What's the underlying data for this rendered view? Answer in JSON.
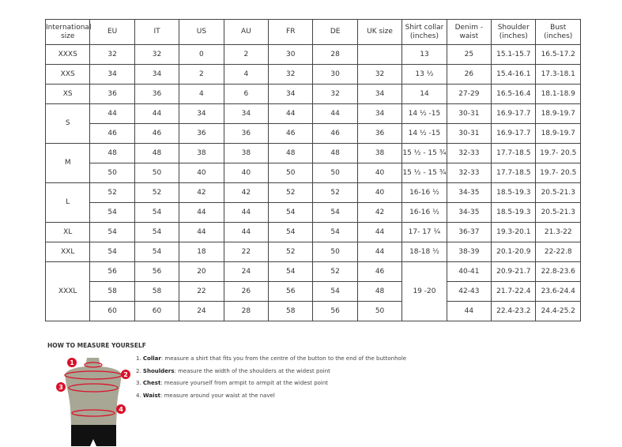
{
  "table": {
    "headers": [
      "International size",
      "EU",
      "IT",
      "US",
      "AU",
      "FR",
      "DE",
      "UK size",
      "Shirt collar (inches)",
      "Denim - waist",
      "Shoulder (inches)",
      "Bust (inches)"
    ],
    "groups": [
      {
        "size": "XXXS",
        "rows": [
          [
            "32",
            "32",
            "0",
            "2",
            "30",
            "28",
            "",
            "13",
            "25",
            "15.1-15.7",
            "16.5-17.2"
          ]
        ]
      },
      {
        "size": "XXS",
        "rows": [
          [
            "34",
            "34",
            "2",
            "4",
            "32",
            "30",
            "32",
            "13 ½",
            "26",
            "15.4-16.1",
            "17.3-18.1"
          ]
        ]
      },
      {
        "size": "XS",
        "rows": [
          [
            "36",
            "36",
            "4",
            "6",
            "34",
            "32",
            "34",
            "14",
            "27-29",
            "16.5-16.4",
            "18.1-18.9"
          ]
        ]
      },
      {
        "size": "S",
        "rows": [
          [
            "44",
            "44",
            "34",
            "34",
            "44",
            "44",
            "34",
            "14 ½ -15",
            "30-31",
            "16.9-17.7",
            "18.9-19.7"
          ],
          [
            "46",
            "46",
            "36",
            "36",
            "46",
            "46",
            "36",
            "14 ½ -15",
            "30-31",
            "16.9-17.7",
            "18.9-19.7"
          ]
        ]
      },
      {
        "size": "M",
        "rows": [
          [
            "48",
            "48",
            "38",
            "38",
            "48",
            "48",
            "38",
            "15 ½ - 15 ¾",
            "32-33",
            "17.7-18.5",
            "19.7- 20.5"
          ],
          [
            "50",
            "50",
            "40",
            "40",
            "50",
            "50",
            "40",
            "15 ½ - 15 ¾",
            "32-33",
            "17.7-18.5",
            "19.7- 20.5"
          ]
        ]
      },
      {
        "size": "L",
        "rows": [
          [
            "52",
            "52",
            "42",
            "42",
            "52",
            "52",
            "40",
            "16-16 ½",
            "34-35",
            "18.5-19.3",
            "20.5-21.3"
          ],
          [
            "54",
            "54",
            "44",
            "44",
            "54",
            "54",
            "42",
            "16-16 ½",
            "34-35",
            "18.5-19.3",
            "20.5-21.3"
          ]
        ]
      },
      {
        "size": "XL",
        "rows": [
          [
            "54",
            "54",
            "44",
            "44",
            "54",
            "54",
            "44",
            "17- 17 ¼",
            "36-37",
            "19.3-20.1",
            "21.3-22"
          ]
        ]
      },
      {
        "size": "XXL",
        "rows": [
          [
            "54",
            "54",
            "18",
            "22",
            "52",
            "50",
            "44",
            "18-18 ½",
            "38-39",
            "20.1-20.9",
            "22-22.8"
          ]
        ]
      },
      {
        "size": "XXXL",
        "rows": [
          [
            "56",
            "56",
            "20",
            "24",
            "54",
            "52",
            "46",
            "19 -20",
            "40-41",
            "20.9-21.7",
            "22.8-23.6"
          ],
          [
            "58",
            "58",
            "22",
            "26",
            "56",
            "54",
            "48",
            null,
            "42-43",
            "21.7-22.4",
            "23.6-24.4"
          ],
          [
            "60",
            "60",
            "24",
            "28",
            "58",
            "56",
            "50",
            null,
            "44",
            "22.4-23.2",
            "24.4-25.2"
          ]
        ]
      }
    ]
  },
  "howto": {
    "title": "HOW TO MEASURE YOURSELF",
    "steps": [
      {
        "num": "1.",
        "label": "Collar",
        "text": ": measure a shirt that fits you from the centre of the button to the end of the buttonhole"
      },
      {
        "num": "2.",
        "label": "Shoulders",
        "text": ": measure the width of the shoulders at the widest point"
      },
      {
        "num": "3.",
        "label": "Chest",
        "text": ": measure yourself from armpit to armpit at the widest point"
      },
      {
        "num": "4.",
        "label": "Waist",
        "text": ": measure around your waist at the navel"
      }
    ],
    "markers": [
      "1",
      "2",
      "3",
      "4"
    ],
    "colors": {
      "marker": "#d9112a",
      "torso": "#a8a795",
      "pants": "#111111"
    }
  }
}
